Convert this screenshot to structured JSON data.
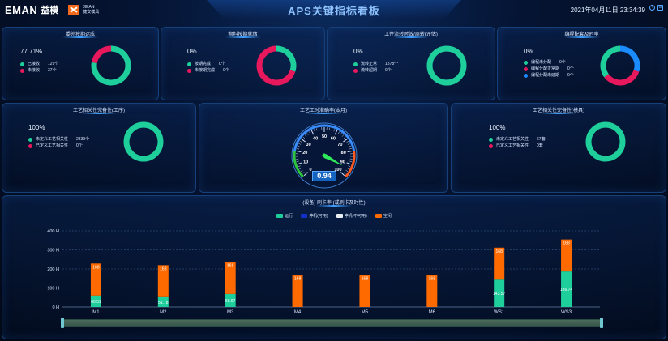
{
  "header": {
    "logo_text": "EMAN",
    "logo_cn": "益模",
    "partner_text_top": "JIEAN",
    "partner_text_bottom": "捷安模具",
    "title": "APS关键指标看板",
    "datetime": "2021年04月11日 23:34:39",
    "help_icon": "?",
    "settings_icon": "⚙"
  },
  "panels": {
    "p1": {
      "title": "委外按期达成",
      "percent": "77.71%",
      "legend": [
        {
          "label": "已接收",
          "value": "129个",
          "color": "#1fcf9b"
        },
        {
          "label": "未接收",
          "value": "37个",
          "color": "#e8185d"
        }
      ]
    },
    "p2": {
      "title": "物料按期就绪",
      "percent": "0%",
      "legend": [
        {
          "label": "按期完成",
          "value": "0个",
          "color": "#1fcf9b"
        },
        {
          "label": "未按期完成",
          "value": "0个",
          "color": "#e8185d"
        }
      ]
    },
    "p3": {
      "title": "工件流转时效/周转(评估)",
      "percent": "0%",
      "legend": [
        {
          "label": "流转正常",
          "value": "1878个",
          "color": "#1fcf9b"
        },
        {
          "label": "流转超期",
          "value": "0个",
          "color": "#e8185d"
        }
      ]
    },
    "p4": {
      "title": "编程配套及时率",
      "percent": "0%",
      "legend": [
        {
          "label": "编程未分配",
          "value": "0个",
          "color": "#1fcf9b"
        },
        {
          "label": "编程分配正常期",
          "value": "0个",
          "color": "#e8185d"
        },
        {
          "label": "编程分配未延期",
          "value": "0个",
          "color": "#1a8cff"
        }
      ]
    },
    "p5": {
      "title": "工艺相关性完备性(工序)",
      "percent": "100%",
      "legend": [
        {
          "label": "未定义工艺相关性",
          "value": "2339个",
          "color": "#1fcf9b"
        },
        {
          "label": "已定义工艺相关性",
          "value": "0个",
          "color": "#e8185d"
        }
      ]
    },
    "p6": {
      "title": "工艺工时准确率(本月)",
      "gauge_value": "0.94",
      "gauge_ticks": [
        "0",
        "10",
        "20",
        "30",
        "40",
        "50",
        "60",
        "70",
        "80",
        "90",
        "100"
      ]
    },
    "p7": {
      "title": "工艺相关性完备性(模具)",
      "percent": "100%",
      "legend": [
        {
          "label": "未定义工艺相关性",
          "value": "67套",
          "color": "#1fcf9b"
        },
        {
          "label": "已定义工艺相关性",
          "value": "0套",
          "color": "#e8185d"
        }
      ]
    }
  },
  "donuts": [
    {
      "id": "d1",
      "segments": [
        {
          "value": 77.71,
          "color": "#1fcf9b"
        },
        {
          "value": 22.29,
          "color": "#e8185d"
        }
      ]
    },
    {
      "id": "d2",
      "segments": [
        {
          "value": 30,
          "color": "#1fcf9b"
        },
        {
          "value": 70,
          "color": "#e8185d"
        }
      ]
    },
    {
      "id": "d3",
      "segments": [
        {
          "value": 100,
          "color": "#1fcf9b"
        }
      ]
    },
    {
      "id": "d4",
      "segments": [
        {
          "value": 30,
          "color": "#1a8cff"
        },
        {
          "value": 35,
          "color": "#e8185d"
        },
        {
          "value": 35,
          "color": "#1fcf9b"
        }
      ]
    },
    {
      "id": "d5",
      "segments": [
        {
          "value": 100,
          "color": "#1fcf9b"
        }
      ]
    },
    {
      "id": "d7",
      "segments": [
        {
          "value": 100,
          "color": "#1fcf9b"
        }
      ]
    }
  ],
  "chart": {
    "title": "(设备) 刷卡率 (或刷卡及时性)",
    "legend": [
      {
        "label": "运行",
        "color": "#1fcf9b"
      },
      {
        "label": "停机(可用)",
        "color": "#1030c8"
      },
      {
        "label": "停机(不可用)",
        "color": "#e9eef5"
      },
      {
        "label": "空闲",
        "color": "#ff6a00"
      }
    ]
  },
  "chart_data": {
    "type": "bar",
    "categories": [
      "M1",
      "M2",
      "M3",
      "M4",
      "M5",
      "M6",
      "WS1",
      "WS3"
    ],
    "series": [
      {
        "name": "运行",
        "values": [
          60.51,
          51.78,
          68.67,
          0,
          0,
          0,
          143.57,
          186.74
        ]
      },
      {
        "name": "空闲",
        "values": [
          168,
          168,
          168,
          168,
          168,
          168,
          168,
          168
        ]
      }
    ],
    "stacked": true,
    "yticks": [
      "0 H",
      "100 H",
      "200 H",
      "300 H",
      "400 H"
    ],
    "ylim": [
      0,
      400
    ],
    "grid": true
  }
}
